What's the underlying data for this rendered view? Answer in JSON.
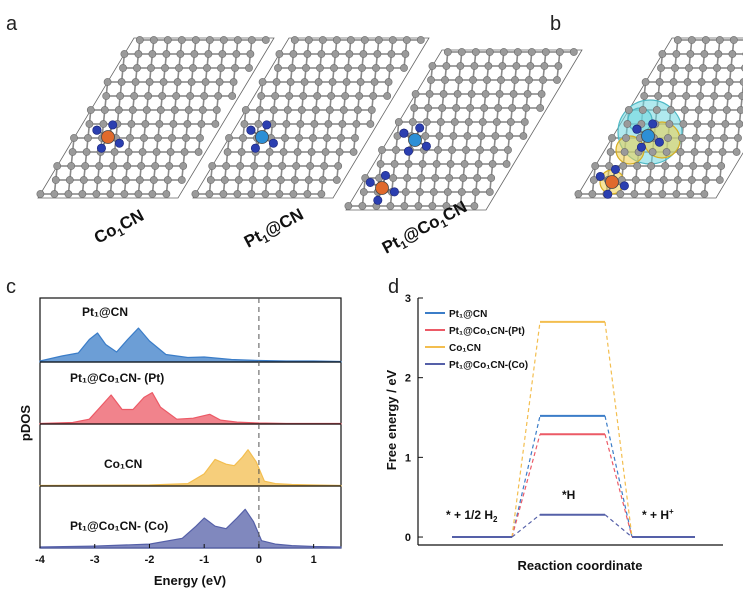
{
  "panels": {
    "a": "a",
    "b": "b",
    "c": "c",
    "d": "d"
  },
  "structures": [
    {
      "label_main": "Co",
      "label_sub": "1",
      "label_rest": "CN"
    },
    {
      "label_main": "Pt",
      "label_sub": "1",
      "label_rest": "@CN"
    },
    {
      "label_main": "Pt",
      "label_sub": "1",
      "label_rest": "@Co",
      "label_sub2": "1",
      "label_rest2": "CN"
    }
  ],
  "colors": {
    "carbon": "#9a9a9a",
    "nitrogen": "#2b3fb0",
    "cobalt": "#e06a2c",
    "platinum": "#2d8fd6",
    "charge_cyan": "#6fd7e0",
    "charge_yellow": "#f0cf4a",
    "pt_cn": "#3b7dc8",
    "pt_co_pt": "#ec5a66",
    "co_cn": "#f3be4f",
    "pt_co_co": "#5560a8"
  },
  "chart_data": [
    {
      "type": "area",
      "xlabel": "Energy (eV)",
      "ylabel": "pDOS",
      "xlim": [
        -4,
        1.5
      ],
      "xticks": [
        "-4",
        "-3",
        "-2",
        "-1",
        "0",
        "1"
      ],
      "fermi_level": 0,
      "series": [
        {
          "name": "Pt₁@CN",
          "color": "#3b7dc8",
          "x": [
            -4.0,
            -3.6,
            -3.3,
            -3.1,
            -2.95,
            -2.8,
            -2.6,
            -2.4,
            -2.2,
            -2.0,
            -1.7,
            -1.3,
            -1.0,
            -0.5,
            0.0,
            0.5,
            1.0,
            1.5
          ],
          "y": [
            0.02,
            0.12,
            0.18,
            0.45,
            0.58,
            0.35,
            0.2,
            0.45,
            0.68,
            0.42,
            0.15,
            0.09,
            0.1,
            0.05,
            0.03,
            0.02,
            0.02,
            0.01
          ]
        },
        {
          "name": "Pt₁@Co₁CN- (Pt)",
          "color": "#ec5a66",
          "x": [
            -4.0,
            -3.4,
            -3.1,
            -2.9,
            -2.7,
            -2.5,
            -2.3,
            -2.1,
            -1.95,
            -1.8,
            -1.5,
            -1.2,
            -0.9,
            -0.7,
            -0.4,
            0.0,
            0.5,
            1.0,
            1.5
          ],
          "y": [
            0.01,
            0.03,
            0.1,
            0.35,
            0.6,
            0.3,
            0.3,
            0.55,
            0.65,
            0.35,
            0.1,
            0.12,
            0.2,
            0.08,
            0.04,
            0.02,
            0.01,
            0.01,
            0.01
          ]
        },
        {
          "name": "Co₁CN",
          "color": "#f3be4f",
          "x": [
            -4.0,
            -2.0,
            -1.3,
            -1.0,
            -0.8,
            -0.6,
            -0.45,
            -0.3,
            -0.2,
            -0.05,
            0.1,
            0.3,
            0.6,
            1.0,
            1.5
          ],
          "y": [
            0.01,
            0.02,
            0.05,
            0.25,
            0.55,
            0.45,
            0.42,
            0.6,
            0.75,
            0.5,
            0.1,
            0.05,
            0.03,
            0.02,
            0.01
          ]
        },
        {
          "name": "Pt₁@Co₁CN- (Co)",
          "color": "#5560a8",
          "x": [
            -4.0,
            -3.0,
            -2.0,
            -1.4,
            -1.15,
            -1.0,
            -0.8,
            -0.6,
            -0.4,
            -0.25,
            -0.1,
            0.05,
            0.3,
            0.6,
            1.0,
            1.5
          ],
          "y": [
            0.02,
            0.04,
            0.08,
            0.2,
            0.45,
            0.62,
            0.45,
            0.4,
            0.62,
            0.8,
            0.55,
            0.15,
            0.08,
            0.05,
            0.03,
            0.02
          ]
        }
      ],
      "labels": [
        "Pt₁@CN",
        "Pt₁@Co₁CN- (Pt)",
        "Co₁CN",
        "Pt₁@Co₁CN- (Co)"
      ]
    },
    {
      "type": "line",
      "xlabel": "Reaction coordinate",
      "ylabel": "Free energy / eV",
      "ylim": [
        -0.1,
        3
      ],
      "yticks": [
        "0",
        "1",
        "2",
        "3"
      ],
      "states": [
        "* + 1/2 H₂",
        "*H",
        "* + H⁺"
      ],
      "annotations": {
        "start": "* + 1/2 H",
        "start_sub": "2",
        "mid": "*H",
        "end": "* + H",
        "end_sup": "+"
      },
      "series": [
        {
          "name": "Pt₁@CN",
          "color": "#3b7dc8",
          "values": [
            0,
            1.52,
            0
          ]
        },
        {
          "name": "Pt₁@Co₁CN-(Pt)",
          "color": "#ec5a66",
          "values": [
            0,
            1.29,
            0
          ]
        },
        {
          "name": "Co₁CN",
          "color": "#f3be4f",
          "values": [
            0,
            2.7,
            0
          ]
        },
        {
          "name": "Pt₁@Co₁CN-(Co)",
          "color": "#5560a8",
          "values": [
            0,
            0.28,
            0
          ]
        }
      ],
      "legend": "top-left"
    }
  ]
}
